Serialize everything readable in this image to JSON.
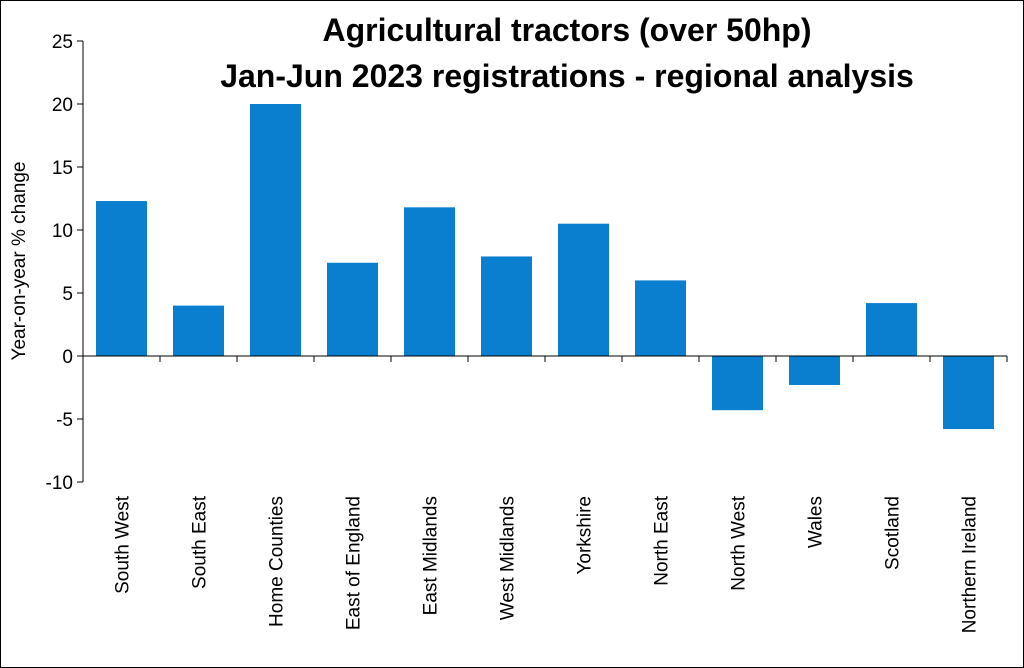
{
  "chart_data": {
    "type": "bar",
    "title_lines": [
      "Agricultural tractors (over 50hp)",
      "Jan-Jun 2023 registrations - regional analysis"
    ],
    "xlabel": "",
    "ylabel": "Year-on-year  % change",
    "ylim": [
      -10,
      25
    ],
    "yticks": [
      25,
      20,
      15,
      10,
      5,
      0,
      -5,
      -10
    ],
    "ytick_labels": [
      "25",
      "20",
      "15",
      "10",
      "5",
      "0",
      "-5",
      "-10"
    ],
    "grid": false,
    "legend": "none",
    "bar_color": "#0a7fcf",
    "categories": [
      "South West",
      "South East",
      "Home Counties",
      "East of England",
      "East Midlands",
      "West Midlands",
      "Yorkshire",
      "North East",
      "North West",
      "Wales",
      "Scotland",
      "Northern Ireland"
    ],
    "values": [
      12.3,
      4.0,
      20.0,
      7.4,
      11.8,
      7.9,
      10.5,
      6.0,
      -4.3,
      -2.3,
      4.2,
      -5.8
    ]
  }
}
